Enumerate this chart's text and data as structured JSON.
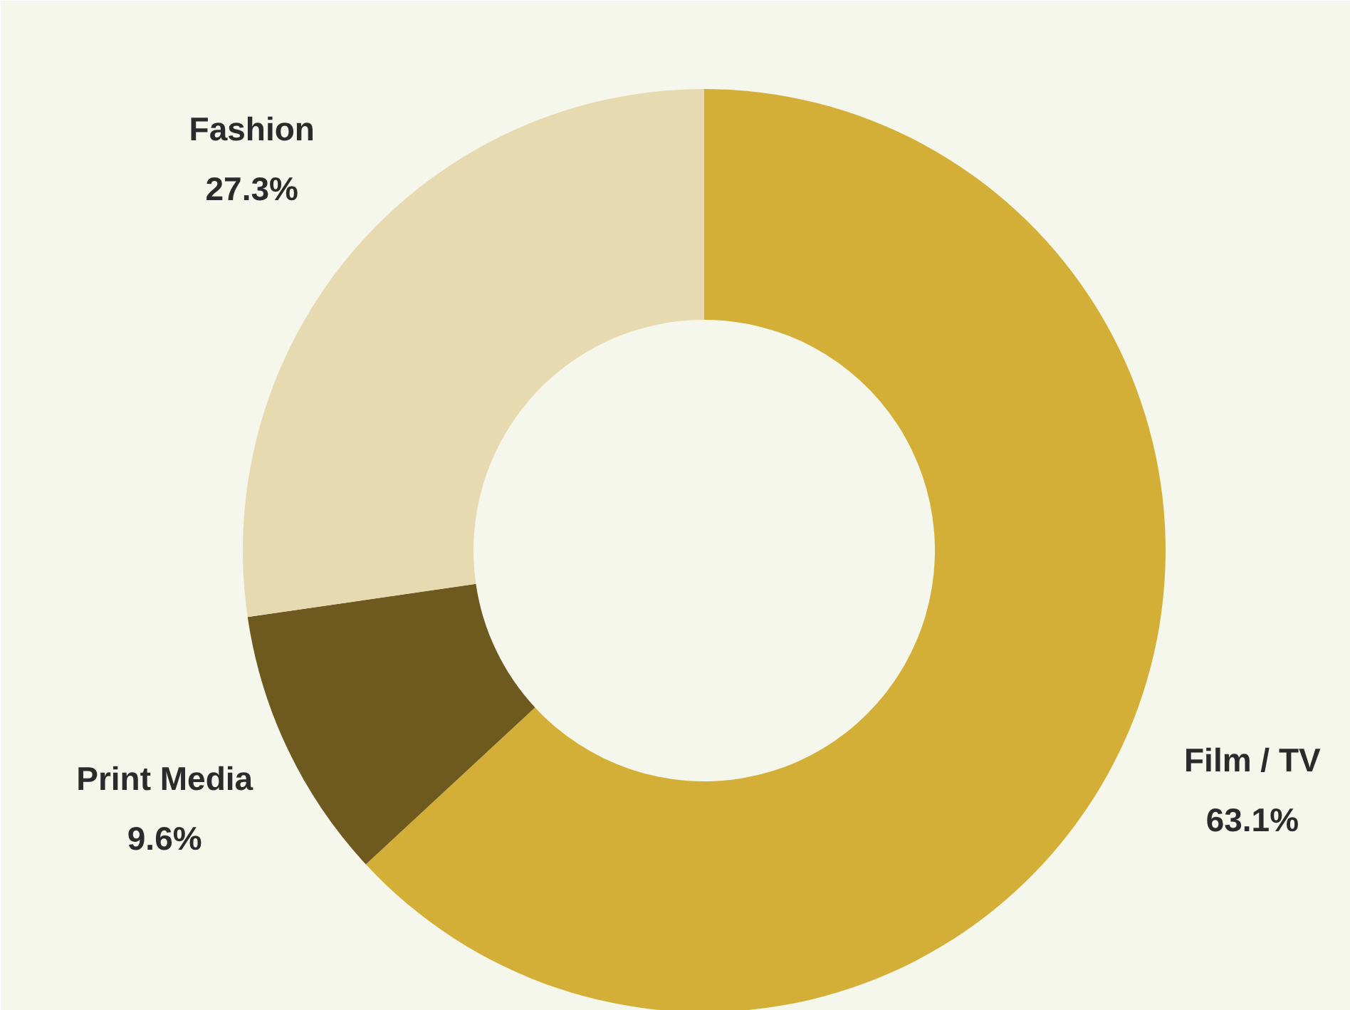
{
  "chart_data": {
    "type": "donut",
    "categories": [
      "Film / TV",
      "Print Media",
      "Fashion"
    ],
    "values": [
      63.1,
      9.6,
      27.3
    ],
    "colors": [
      "#d4af37",
      "#6e5a1e",
      "#e8dab0"
    ],
    "value_labels": [
      "63.1%",
      "9.6%",
      "27.3%"
    ],
    "legend": false
  }
}
